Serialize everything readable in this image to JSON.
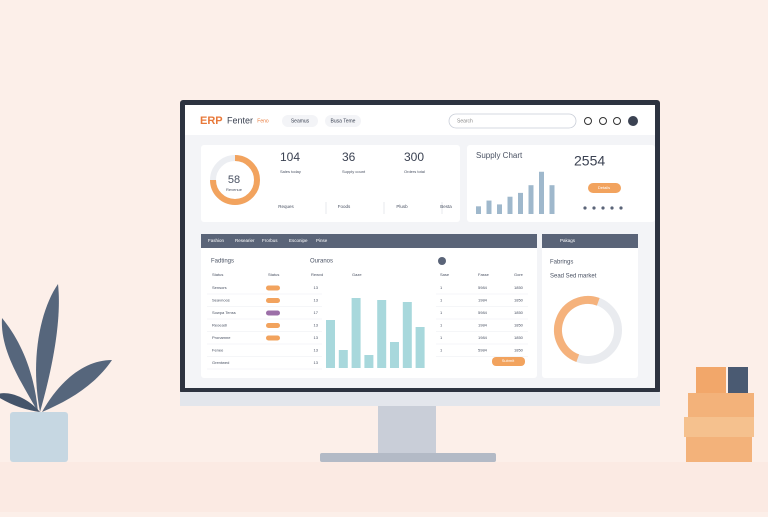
{
  "header": {
    "logo_prefix": "ERP",
    "logo_name": "Fenter",
    "nav": [
      "Feno",
      "Seamus",
      "Busa Teme"
    ],
    "search": "Search"
  },
  "summary": {
    "gauge_value": "58",
    "gauge_label": "Revenue",
    "kpis": [
      {
        "value": "104",
        "label": "Sales today"
      },
      {
        "value": "36",
        "label": "Supply count"
      },
      {
        "value": "300",
        "label": "Orders total"
      }
    ],
    "footer": [
      "Reques",
      "Foods",
      "Plusb",
      "Besta"
    ]
  },
  "supply": {
    "title": "Supply Chart",
    "total": "2554",
    "button": "Details",
    "bars": [
      8,
      14,
      10,
      18,
      22,
      30,
      44,
      30
    ],
    "ylim": [
      0,
      50
    ]
  },
  "panel": {
    "tabs": [
      "Fashion",
      "Researier",
      "Frorbus",
      "Esconipe",
      "Pinse"
    ],
    "title": "Fadtings",
    "chart_title": "Ouranos",
    "columns": [
      "Status",
      "Status",
      "Rewvd",
      "Gaze"
    ],
    "rows": [
      [
        "Sensors",
        "13"
      ],
      [
        "Seavnoos",
        "13"
      ],
      [
        "Sowpa Tenss",
        "17"
      ],
      [
        "Reoeadi",
        "13"
      ],
      [
        "Pronamne",
        "13"
      ],
      [
        "Fenee",
        "13"
      ],
      [
        "Grentwed",
        "13"
      ]
    ],
    "bars": [
      48,
      18,
      70,
      13,
      68,
      26,
      66,
      41
    ],
    "ylim": [
      0,
      80
    ],
    "right_columns": [
      "Sase",
      "Fasse",
      "Gore"
    ],
    "right_rows": [
      [
        "1",
        "5984",
        "1850"
      ],
      [
        "1",
        "1984",
        "1850"
      ],
      [
        "1",
        "5984",
        "1850"
      ],
      [
        "1",
        "1984",
        "1850"
      ],
      [
        "1",
        "1984",
        "1850"
      ],
      [
        "1",
        "5984",
        "1850"
      ]
    ],
    "button": "Submit"
  },
  "side": {
    "header": "Pakags",
    "title": "Fabrings",
    "subtitle": "Sead Sed market"
  }
}
